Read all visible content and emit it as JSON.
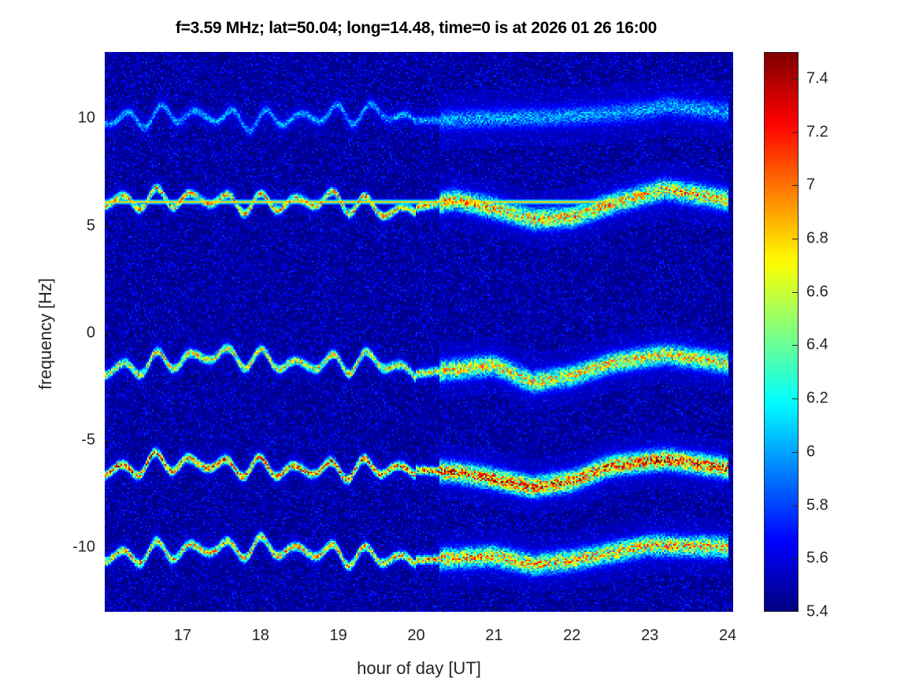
{
  "chart_data": {
    "type": "heatmap",
    "title": "f=3.59 MHz;  lat=50.04; long=14.48, time=0 is at 2026 01 26 16:00",
    "xlabel": "hour of day [UT]",
    "ylabel": "frequency [Hz]",
    "xlim": [
      16.0,
      24.07
    ],
    "ylim": [
      -13.0,
      13.1
    ],
    "xticks": [
      "17",
      "18",
      "19",
      "20",
      "21",
      "22",
      "23",
      "24"
    ],
    "yticks": [
      "-10",
      "-5",
      "0",
      "5",
      "10"
    ],
    "colorbar": {
      "clim": [
        5.4,
        7.5
      ],
      "colormap": "jet",
      "ticks": [
        "5.4",
        "5.6",
        "5.8",
        "6",
        "6.2",
        "6.4",
        "6.6",
        "6.8",
        "7",
        "7.2",
        "7.4"
      ]
    },
    "background_level": 5.5,
    "ridges": [
      {
        "name": "ridge-10Hz",
        "peak": 6.1,
        "hours": [
          16,
          17,
          18,
          19,
          19.5,
          20,
          21,
          22,
          23,
          23.2,
          24
        ],
        "freq": [
          9.9,
          10.2,
          9.9,
          10.2,
          10.3,
          9.9,
          10.0,
          10.1,
          10.4,
          10.6,
          10.3
        ]
      },
      {
        "name": "ridge-6Hz",
        "peak": 7.0,
        "hours": [
          16,
          17,
          18,
          19,
          19.7,
          20.5,
          21,
          21.5,
          22,
          22.5,
          23.2,
          24
        ],
        "freq": [
          6.1,
          6.3,
          6.0,
          6.2,
          5.6,
          6.2,
          5.8,
          5.3,
          5.4,
          6.0,
          6.7,
          6.2
        ]
      },
      {
        "name": "ridge-6Hz-line",
        "peak": 6.8,
        "hours": [
          16,
          22.5
        ],
        "freq": [
          6.1,
          6.1
        ]
      },
      {
        "name": "ridge-minus1.5Hz",
        "peak": 6.9,
        "hours": [
          16,
          16.8,
          17.5,
          18.5,
          19.5,
          20,
          21,
          21.5,
          22,
          22.5,
          23.2,
          24
        ],
        "freq": [
          -1.8,
          -1.3,
          -1.0,
          -1.5,
          -1.3,
          -1.9,
          -1.5,
          -2.3,
          -2.0,
          -1.4,
          -1.0,
          -1.4
        ]
      },
      {
        "name": "ridge-minus6.5Hz",
        "peak": 7.3,
        "hours": [
          16,
          16.8,
          17.6,
          18.5,
          19.5,
          20.5,
          21,
          21.5,
          22,
          22.5,
          23.2,
          24
        ],
        "freq": [
          -6.5,
          -6.0,
          -6.2,
          -6.4,
          -6.3,
          -6.5,
          -6.8,
          -7.2,
          -6.9,
          -6.2,
          -5.9,
          -6.3
        ]
      },
      {
        "name": "ridge-minus10Hz",
        "peak": 7.0,
        "hours": [
          16,
          17,
          18,
          19,
          20,
          21,
          21.5,
          22,
          23,
          24
        ],
        "freq": [
          -10.5,
          -10.1,
          -10.0,
          -10.3,
          -10.6,
          -10.4,
          -10.8,
          -10.6,
          -9.9,
          -10.0
        ]
      }
    ]
  }
}
